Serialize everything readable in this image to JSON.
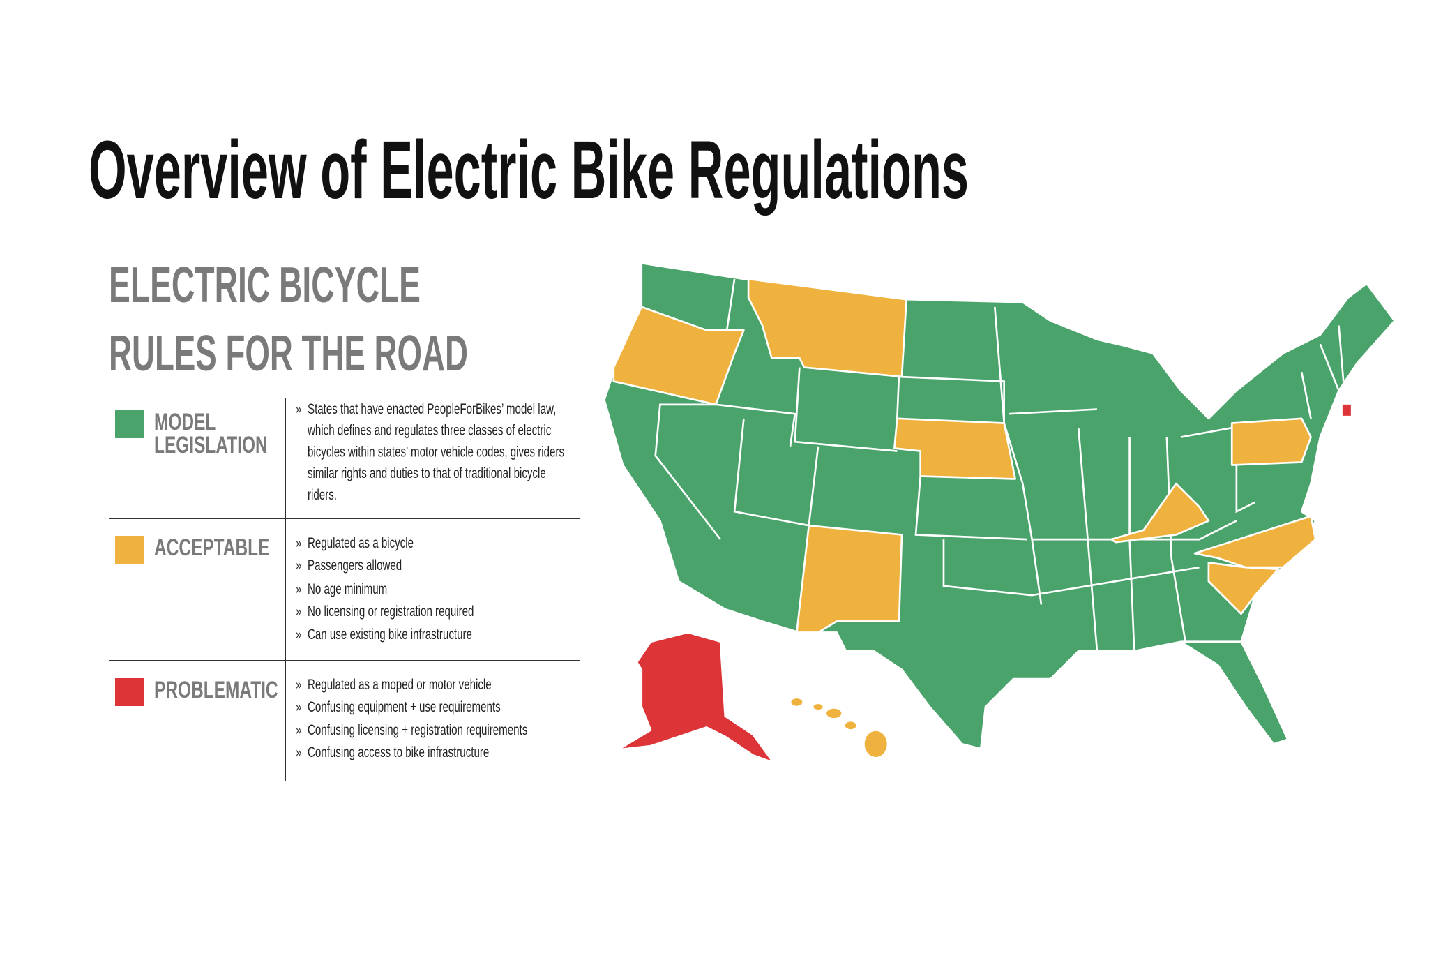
{
  "title": "Overview of Electric Bike Regulations",
  "subtitle": [
    "ELECTRIC BICYCLE",
    "RULES FOR THE ROAD"
  ],
  "bullet": "»",
  "legend": [
    {
      "color": "#4aa36b",
      "label": [
        "MODEL",
        "LEGISLATION"
      ],
      "items": [
        [
          "States that have enacted PeopleForBikes’ model law,",
          "which defines and regulates three classes of electric",
          "bicycles within states’ motor vehicle codes, gives riders",
          "similar rights and duties to that of traditional bicycle",
          "riders."
        ]
      ]
    },
    {
      "color": "#f0b23f",
      "label": [
        "ACCEPTABLE"
      ],
      "items": [
        [
          "Regulated as a bicycle"
        ],
        [
          "Passengers allowed"
        ],
        [
          "No age minimum"
        ],
        [
          "No licensing or registration required"
        ],
        [
          "Can use existing bike infrastructure"
        ]
      ]
    },
    {
      "color": "#dd3438",
      "label": [
        "PROBLEMATIC"
      ],
      "items": [
        [
          "Regulated as a moped or motor vehicle"
        ],
        [
          "Confusing equipment + use requirements"
        ],
        [
          "Confusing licensing + registration requirements"
        ],
        [
          "Confusing access to bike infrastructure"
        ]
      ]
    }
  ]
}
